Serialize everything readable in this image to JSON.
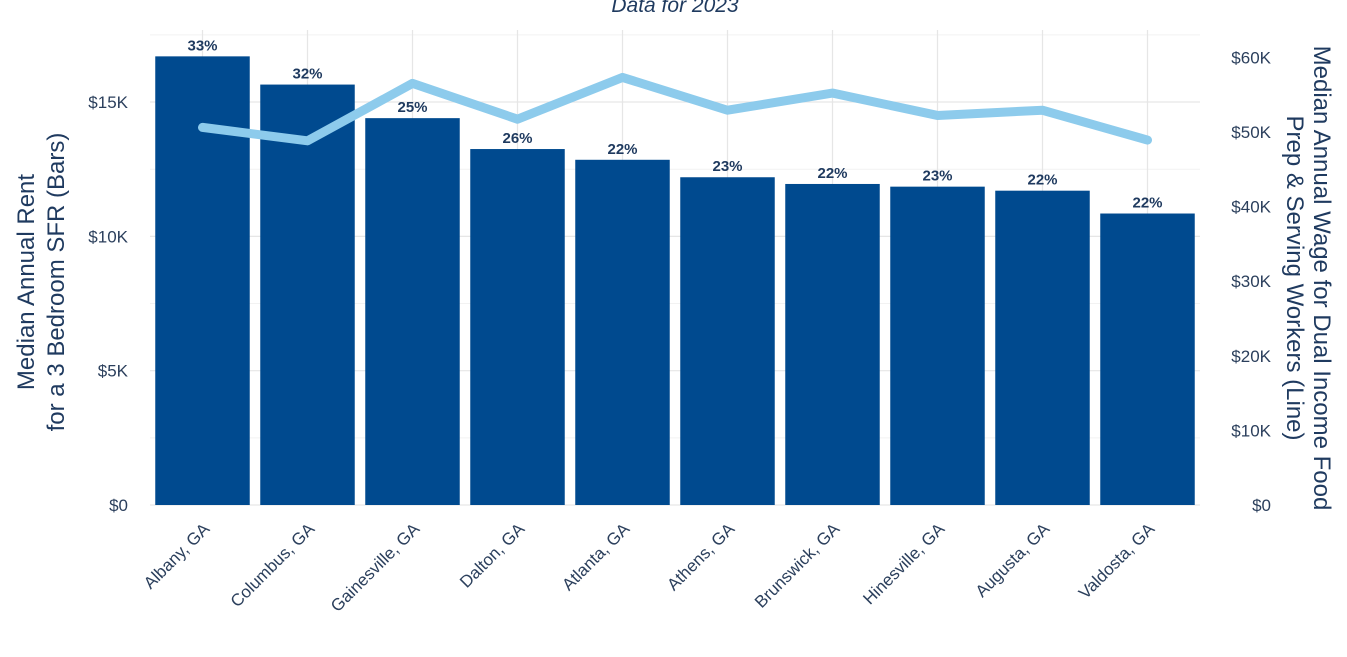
{
  "chart_data": {
    "type": "bar",
    "title": "",
    "subtitle": "Data for 2023",
    "categories": [
      "Albany, GA",
      "Columbus, GA",
      "Gainesville, GA",
      "Dalton, GA",
      "Atlanta, GA",
      "Athens, GA",
      "Brunswick, GA",
      "Hinesville, GA",
      "Augusta, GA",
      "Valdosta, GA"
    ],
    "ylabel": [
      "Median Annual Rent",
      "for a 3 Bedroom SFR (Bars)"
    ],
    "y2label": [
      "Median Annual Wage for Dual Income Food",
      "Prep & Serving Workers (Line)"
    ],
    "ylim": [
      0,
      18500
    ],
    "y2lim": [
      0,
      66600
    ],
    "yticks": [
      0,
      5000,
      10000,
      15000
    ],
    "ytick_labels": [
      "$0",
      "$5K",
      "$10K",
      "$15K"
    ],
    "y2ticks": [
      0,
      10000,
      20000,
      30000,
      40000,
      50000,
      60000
    ],
    "y2tick_labels": [
      "$0",
      "$10K",
      "$20K",
      "$30K",
      "$40K",
      "$50K",
      "$60K"
    ],
    "grid": true,
    "series": [
      {
        "name": "Median Annual Rent for a 3 Bedroom SFR",
        "type": "bar",
        "axis": "left",
        "color": "#004a8f",
        "values": [
          16700,
          15650,
          14400,
          13250,
          12850,
          12200,
          11950,
          11850,
          11700,
          10850
        ],
        "labels": [
          "33%",
          "32%",
          "25%",
          "26%",
          "22%",
          "23%",
          "22%",
          "23%",
          "22%",
          "22%"
        ]
      },
      {
        "name": "Median Annual Wage for Dual Income Food Prep & Serving Workers",
        "type": "line",
        "axis": "right",
        "color": "#8dcbec",
        "values": [
          50600,
          48800,
          56500,
          51700,
          57300,
          52900,
          55200,
          52200,
          52900,
          48900
        ]
      }
    ]
  }
}
